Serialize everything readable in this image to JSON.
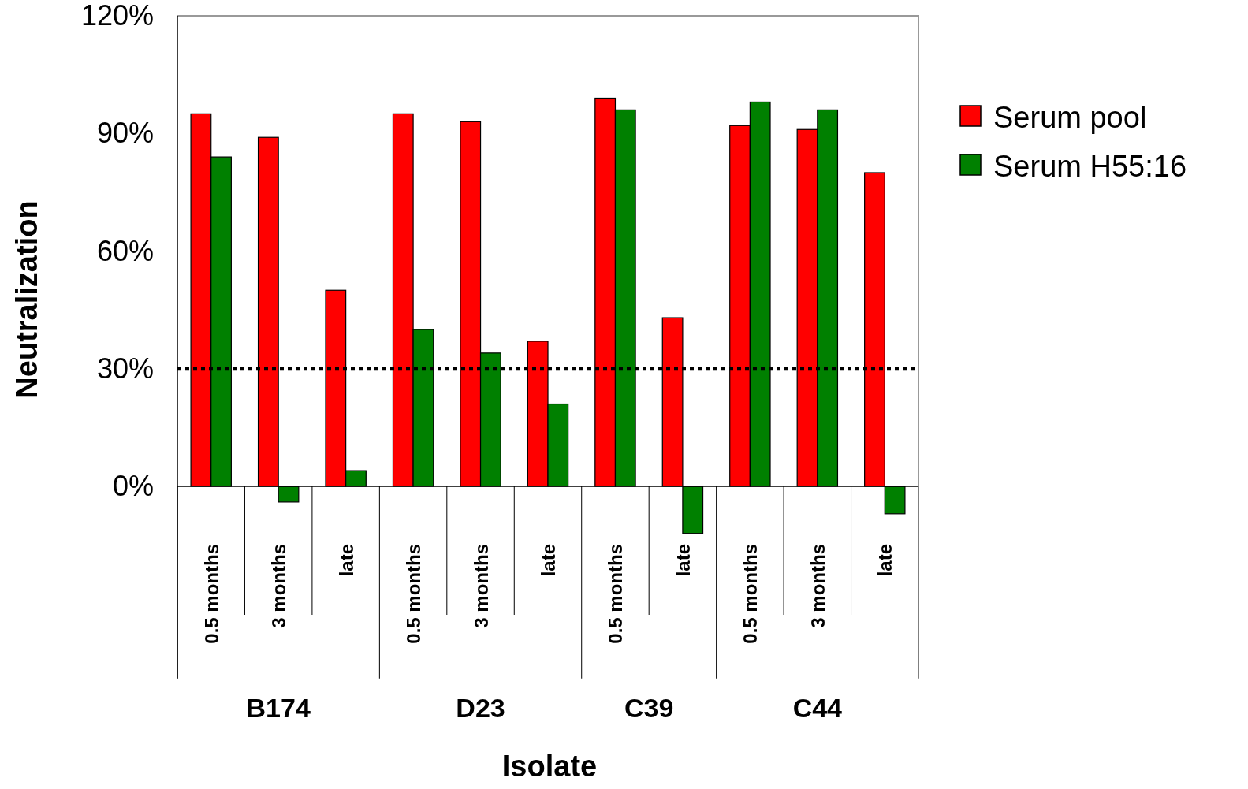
{
  "chart_data": {
    "type": "bar",
    "xlabel": "Isolate",
    "ylabel": "Neutralization",
    "categories": [
      "0.5 months",
      "3 months",
      "late",
      "0.5 months",
      "3 months",
      "late",
      "0.5 months",
      "late",
      "0.5 months",
      "3 months",
      "late"
    ],
    "series": [
      {
        "name": "Serum pool",
        "color": "#ff0000",
        "values": [
          95,
          89,
          50,
          95,
          93,
          37,
          99,
          43,
          92,
          91,
          80
        ]
      },
      {
        "name": "Serum H55:16",
        "color": "#008000",
        "values": [
          84,
          -4,
          4,
          40,
          34,
          21,
          96,
          -12,
          98,
          96,
          -7
        ]
      }
    ],
    "ylim": [
      -49,
      120
    ],
    "yticks": [
      {
        "value": 0,
        "label": "0%"
      },
      {
        "value": 30,
        "label": "30%"
      },
      {
        "value": 60,
        "label": "60%"
      },
      {
        "value": 90,
        "label": "90%"
      },
      {
        "value": 120,
        "label": "120%"
      }
    ],
    "ref_lines": [
      {
        "axis": "y",
        "value": 30,
        "color": "#000000",
        "line_style": "dotted"
      }
    ],
    "annotations": [
      "B174",
      "D23",
      "C39",
      "C44"
    ],
    "legend": "right",
    "grid": false
  }
}
